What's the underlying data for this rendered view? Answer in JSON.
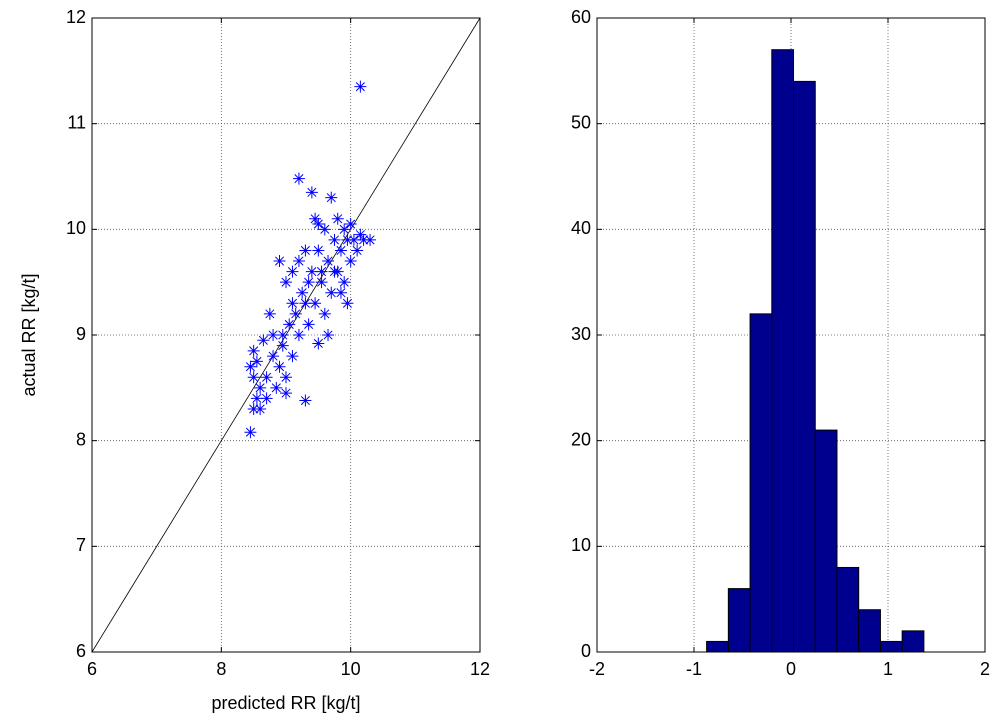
{
  "chart_data": [
    {
      "type": "scatter",
      "xlabel": "predicted RR [kg/t]",
      "ylabel": "actual RR [kg/t]",
      "xlim": [
        6,
        12
      ],
      "ylim": [
        6,
        12
      ],
      "xticks": [
        6,
        8,
        10,
        12
      ],
      "yticks": [
        6,
        7,
        8,
        9,
        10,
        11,
        12
      ],
      "grid": true,
      "diagonal": true,
      "color": "#0000ff",
      "x": [
        8.45,
        8.5,
        8.55,
        8.5,
        8.45,
        8.5,
        8.6,
        8.65,
        8.7,
        8.75,
        8.8,
        8.85,
        8.9,
        8.9,
        8.95,
        9.0,
        9.0,
        9.05,
        9.1,
        9.1,
        9.15,
        9.2,
        9.2,
        9.25,
        9.3,
        9.3,
        9.35,
        9.4,
        9.4,
        9.45,
        9.45,
        9.5,
        9.5,
        9.55,
        9.6,
        9.6,
        9.65,
        9.7,
        9.7,
        9.75,
        9.8,
        9.8,
        9.85,
        9.9,
        9.9,
        9.95,
        10.0,
        10.0,
        10.05,
        10.1,
        10.15,
        10.2,
        10.3,
        10.15,
        8.6,
        8.7,
        8.8,
        9.0,
        9.2,
        9.3,
        9.5,
        9.65,
        9.75,
        9.85,
        9.95,
        8.55,
        8.95,
        9.1,
        9.35,
        9.55
      ],
      "y": [
        8.08,
        8.3,
        8.4,
        8.6,
        8.7,
        8.85,
        8.5,
        8.95,
        8.6,
        9.2,
        8.8,
        8.5,
        8.7,
        9.7,
        9.0,
        8.6,
        9.5,
        9.1,
        8.8,
        9.6,
        9.2,
        10.48,
        9.0,
        9.4,
        8.38,
        9.3,
        9.1,
        10.35,
        9.6,
        10.1,
        9.3,
        8.92,
        9.8,
        9.5,
        10.0,
        9.2,
        9.7,
        10.3,
        9.4,
        9.9,
        9.6,
        10.1,
        9.8,
        9.5,
        10.0,
        9.3,
        9.7,
        10.05,
        9.9,
        9.8,
        9.95,
        9.9,
        9.9,
        11.35,
        8.3,
        8.4,
        9.0,
        8.45,
        9.7,
        9.8,
        10.05,
        9.0,
        9.6,
        9.4,
        9.9,
        8.75,
        8.9,
        9.3,
        9.5,
        9.6
      ]
    },
    {
      "type": "histogram",
      "xlim": [
        -2,
        2
      ],
      "ylim": [
        0,
        60
      ],
      "xticks": [
        -2,
        -1,
        0,
        1,
        2
      ],
      "yticks": [
        0,
        10,
        20,
        30,
        40,
        50,
        60
      ],
      "grid": true,
      "color": "#00008f",
      "bins": [
        -0.87,
        -0.646,
        -0.422,
        -0.198,
        0.026,
        0.25,
        0.474,
        0.698,
        0.922,
        1.146,
        1.37
      ],
      "counts": [
        1,
        6,
        32,
        57,
        54,
        21,
        8,
        4,
        1,
        2
      ]
    }
  ]
}
